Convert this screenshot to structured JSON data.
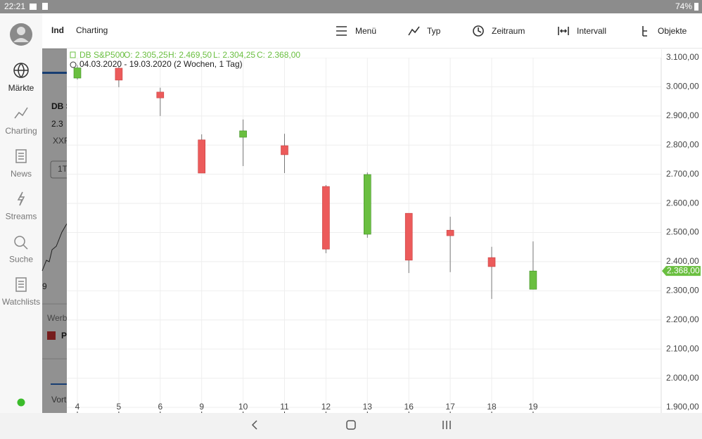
{
  "status_bar": {
    "time": "22:21",
    "battery": "74%"
  },
  "nav": {
    "items": [
      "Märkte",
      "Charting",
      "News",
      "Streams",
      "Suche",
      "Watchlists"
    ]
  },
  "toolbar": {
    "title": "Charting",
    "menu": [
      "Menü",
      "Typ",
      "Zeitraum",
      "Intervall",
      "Objekte"
    ]
  },
  "background_panel": {
    "texts": [
      "Ind",
      "DB S",
      "2.3",
      "XXF",
      "1T",
      "9",
      "Werbu",
      "P",
      "Vort"
    ]
  },
  "chart_data": {
    "type": "candlestick",
    "instrument": "DB S&P500",
    "ohlc_labels": [
      "O: 2.305,25",
      "H: 2.469,50",
      "L: 2.304,25",
      "C: 2.368,00"
    ],
    "period": "04.03.2020 - 19.03.2020",
    "period_note": "(2 Wochen, 1 Tag)",
    "categories": [
      "4",
      "5",
      "6",
      "9",
      "10",
      "11",
      "12",
      "13",
      "16",
      "17",
      "18",
      "19"
    ],
    "open": [
      3030,
      3064,
      2982,
      2818,
      2827,
      2798,
      2658,
      2494,
      2566,
      2508,
      2414,
      2305.25
    ],
    "high": [
      3075,
      3070,
      2997,
      2837,
      2888,
      2839,
      2663,
      2706,
      2566,
      2554,
      2451,
      2469.5
    ],
    "low": [
      3025,
      2999,
      2900,
      2704,
      2728,
      2704,
      2429,
      2482,
      2361,
      2364,
      2272,
      2304.25
    ],
    "close": [
      3065,
      3023,
      2962,
      2704,
      2849,
      2767,
      2443,
      2699,
      2405,
      2489,
      2383,
      2368
    ],
    "up_color": "#6abf40",
    "down_color": "#ec5b5b",
    "last_value": 2368,
    "last_label": "2.368,00",
    "ylim": [
      1880,
      3140
    ],
    "yticks": [
      {
        "value": 1900,
        "label": "1.900,00"
      },
      {
        "value": 2000,
        "label": "2.000,00"
      },
      {
        "value": 2100,
        "label": "2.100,00"
      },
      {
        "value": 2200,
        "label": "2.200,00"
      },
      {
        "value": 2300,
        "label": "2.300,00"
      },
      {
        "value": 2400,
        "label": "2.400,00"
      },
      {
        "value": 2500,
        "label": "2.500,00"
      },
      {
        "value": 2600,
        "label": "2.600,00"
      },
      {
        "value": 2700,
        "label": "2.700,00"
      },
      {
        "value": 2800,
        "label": "2.800,00"
      },
      {
        "value": 2900,
        "label": "2.900,00"
      },
      {
        "value": 3000,
        "label": "3.000,00"
      },
      {
        "value": 3100,
        "label": "3.100,00"
      }
    ],
    "grid": true
  }
}
